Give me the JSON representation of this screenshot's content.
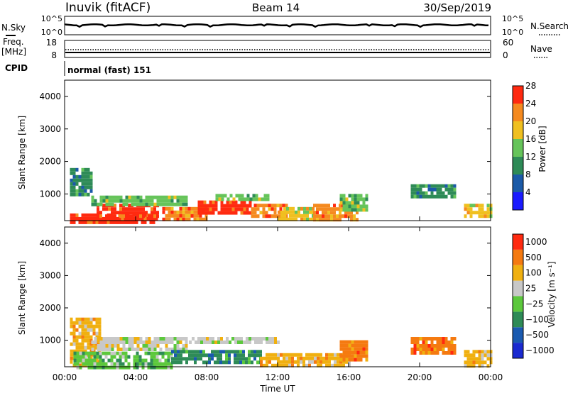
{
  "header": {
    "station": "Inuvik (fitACF)",
    "beam": "Beam 14",
    "date": "30/Sep/2019"
  },
  "summary": {
    "nsky_label": "N.Sky",
    "nsearch_label": "N.Search",
    "nsky_ticks": [
      "10^5",
      "10^0"
    ],
    "nsearch_ticks": [
      "10^5",
      "10^0"
    ],
    "freq_label_1": "Freq.",
    "freq_label_2": "[MHz]",
    "freq_ticks": [
      "18",
      "8"
    ],
    "nave_label": "Nave",
    "nave_ticks": [
      "60",
      "0"
    ],
    "cpid_label": "CPID",
    "cpid_value": "normal (fast) 151"
  },
  "chart_data": [
    {
      "type": "heatmap",
      "name": "power-panel",
      "ylabel": "Slant Range [km]",
      "yticks": [
        "1000",
        "2000",
        "3000",
        "4000"
      ],
      "ylim": [
        180,
        4500
      ],
      "colorbar_label": "Power [dB]",
      "colorbar_ticks": [
        "4",
        "8",
        "12",
        "16",
        "20",
        "24",
        "28"
      ],
      "colors": [
        "#1a1aff",
        "#1b5aa8",
        "#2e8b57",
        "#66c45a",
        "#f0c020",
        "#f58a1f",
        "#ff2a10"
      ],
      "regions": [
        {
          "t0": 0.3,
          "t1": 5.2,
          "r0": 180,
          "r1": 400,
          "level": 6
        },
        {
          "t0": 1.8,
          "t1": 5.3,
          "r0": 350,
          "r1": 700,
          "level": 6
        },
        {
          "t0": 1.5,
          "t1": 6.8,
          "r0": 700,
          "r1": 950,
          "level": 3
        },
        {
          "t0": 5.5,
          "t1": 8.0,
          "r0": 200,
          "r1": 600,
          "level": 5
        },
        {
          "t0": 7.5,
          "t1": 10.5,
          "r0": 400,
          "r1": 800,
          "level": 6
        },
        {
          "t0": 8.5,
          "t1": 11.5,
          "r0": 800,
          "r1": 1000,
          "level": 3
        },
        {
          "t0": 10.5,
          "t1": 12.5,
          "r0": 300,
          "r1": 700,
          "level": 5
        },
        {
          "t0": 12.0,
          "t1": 14.0,
          "r0": 200,
          "r1": 600,
          "level": 4
        },
        {
          "t0": 14.0,
          "t1": 16.5,
          "r0": 250,
          "r1": 700,
          "level": 5
        },
        {
          "t0": 15.5,
          "t1": 17.0,
          "r0": 500,
          "r1": 1000,
          "level": 3
        },
        {
          "t0": 19.5,
          "t1": 22.0,
          "r0": 900,
          "r1": 1300,
          "level": 2
        },
        {
          "t0": 0.3,
          "t1": 1.5,
          "r0": 1000,
          "r1": 1800,
          "level": 2
        },
        {
          "t0": 22.5,
          "t1": 24.0,
          "r0": 300,
          "r1": 700,
          "level": 4
        }
      ]
    },
    {
      "type": "heatmap",
      "name": "velocity-panel",
      "ylabel": "Slant Range [km]",
      "yticks": [
        "1000",
        "2000",
        "3000",
        "4000"
      ],
      "ylim": [
        180,
        4500
      ],
      "xlabel": "Time UT",
      "xticks": [
        "00:00",
        "04:00",
        "08:00",
        "12:00",
        "16:00",
        "20:00",
        "00:00"
      ],
      "xlim": [
        0,
        24
      ],
      "colorbar_label": "Velocity [m s⁻¹]",
      "colorbar_ticks": [
        "1000",
        "500",
        "100",
        "25",
        "−25",
        "−100",
        "−500",
        "−1000"
      ],
      "colors": [
        "#1a2ad0",
        "#1a5ab0",
        "#2e8b57",
        "#5cc83c",
        "#c8c8c8",
        "#f0b010",
        "#f57a10",
        "#ff2a10"
      ],
      "regions": [
        {
          "t0": 0.3,
          "t1": 2.0,
          "r0": 200,
          "r1": 1700,
          "level": 5
        },
        {
          "t0": 1.5,
          "t1": 6.8,
          "r0": 700,
          "r1": 1100,
          "level": 4
        },
        {
          "t0": 7.0,
          "t1": 12.0,
          "r0": 900,
          "r1": 1100,
          "level": 4
        },
        {
          "t0": 0.5,
          "t1": 6.0,
          "r0": 200,
          "r1": 650,
          "level": 3
        },
        {
          "t0": 6.0,
          "t1": 11.0,
          "r0": 300,
          "r1": 700,
          "level": 2
        },
        {
          "t0": 11.0,
          "t1": 16.0,
          "r0": 200,
          "r1": 600,
          "level": 5
        },
        {
          "t0": 15.5,
          "t1": 17.0,
          "r0": 400,
          "r1": 1000,
          "level": 6
        },
        {
          "t0": 19.5,
          "t1": 22.0,
          "r0": 600,
          "r1": 1100,
          "level": 6
        },
        {
          "t0": 22.5,
          "t1": 24.0,
          "r0": 200,
          "r1": 700,
          "level": 5
        }
      ]
    }
  ]
}
